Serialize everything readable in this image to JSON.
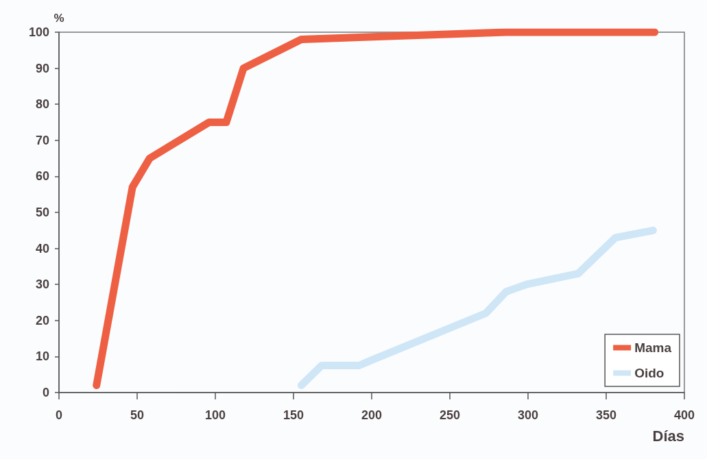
{
  "chart_data": {
    "type": "line",
    "xlabel": "Días",
    "ylabel": "%",
    "xlim": [
      0,
      400
    ],
    "xticks": [
      0,
      50,
      100,
      150,
      200,
      250,
      300,
      350,
      400
    ],
    "ylim": [
      0,
      100
    ],
    "yticks": [
      0,
      10,
      20,
      30,
      40,
      50,
      60,
      70,
      80,
      90,
      100
    ],
    "grid": false,
    "legend": "bottom right",
    "line_style": "solid",
    "series": [
      {
        "name": "Mama",
        "color": "#ee6044",
        "x": [
          24,
          47,
          58,
          96,
          107,
          118,
          155,
          286,
          381
        ],
        "values": [
          2,
          57,
          65,
          75,
          75,
          90,
          98,
          100,
          100
        ]
      },
      {
        "name": "Oido",
        "color": "#cfe6f7",
        "x": [
          155,
          168,
          192,
          200,
          273,
          286,
          299,
          332,
          356,
          380
        ],
        "values": [
          2,
          7.5,
          7.5,
          9,
          22,
          28,
          30,
          33,
          43,
          45
        ]
      }
    ]
  }
}
